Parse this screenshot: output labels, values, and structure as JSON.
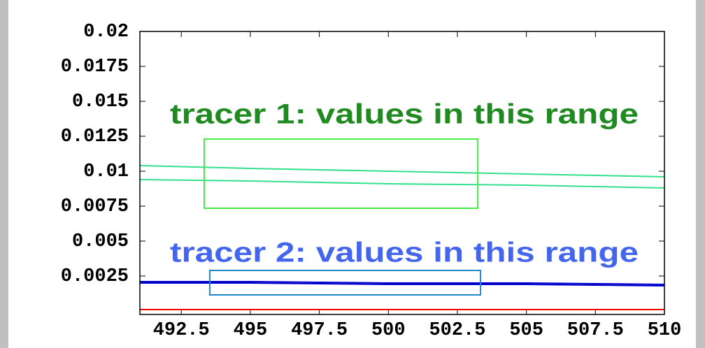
{
  "chart_data": {
    "type": "line",
    "x": [
      491,
      495,
      500,
      505,
      510
    ],
    "series": [
      {
        "color": "#33e08c",
        "values": [
          0.0104,
          0.0102,
          0.01,
          0.0098,
          0.0096
        ]
      },
      {
        "color": "#33e08c",
        "values": [
          0.0094,
          0.0093,
          0.0091,
          0.009,
          0.0088
        ]
      },
      {
        "color": "#0000cc",
        "values": [
          0.0021,
          0.0021,
          0.002,
          0.002,
          0.0019
        ]
      },
      {
        "color": "#0000cc",
        "values": [
          0.002,
          0.002,
          0.0019,
          0.0019,
          0.0018
        ]
      },
      {
        "color": "#ff0000",
        "values": [
          0.0001,
          0.0001,
          0.0001,
          0.0001,
          0.0001
        ]
      }
    ],
    "xlim": [
      491,
      510
    ],
    "ylim": [
      -0.00025,
      0.02
    ],
    "xticks": [
      492.5,
      495,
      497.5,
      500,
      502.5,
      505,
      507.5,
      510
    ],
    "yticks": [
      0.0025,
      0.005,
      0.0075,
      0.01,
      0.0125,
      0.015,
      0.0175,
      0.02
    ],
    "annotations": [
      {
        "text": "tracer 1: values in this range",
        "color": "#1f8a1f",
        "x": [
          493.33,
          503.24
        ],
        "y": [
          0.00735,
          0.0123
        ],
        "box_color": "#44ee44"
      },
      {
        "text": "tracer 2: values in this range",
        "color": "#4466ee",
        "x": [
          493.53,
          503.34
        ],
        "y": [
          0.00115,
          0.0029
        ],
        "box_color": "#2288cc"
      }
    ]
  }
}
